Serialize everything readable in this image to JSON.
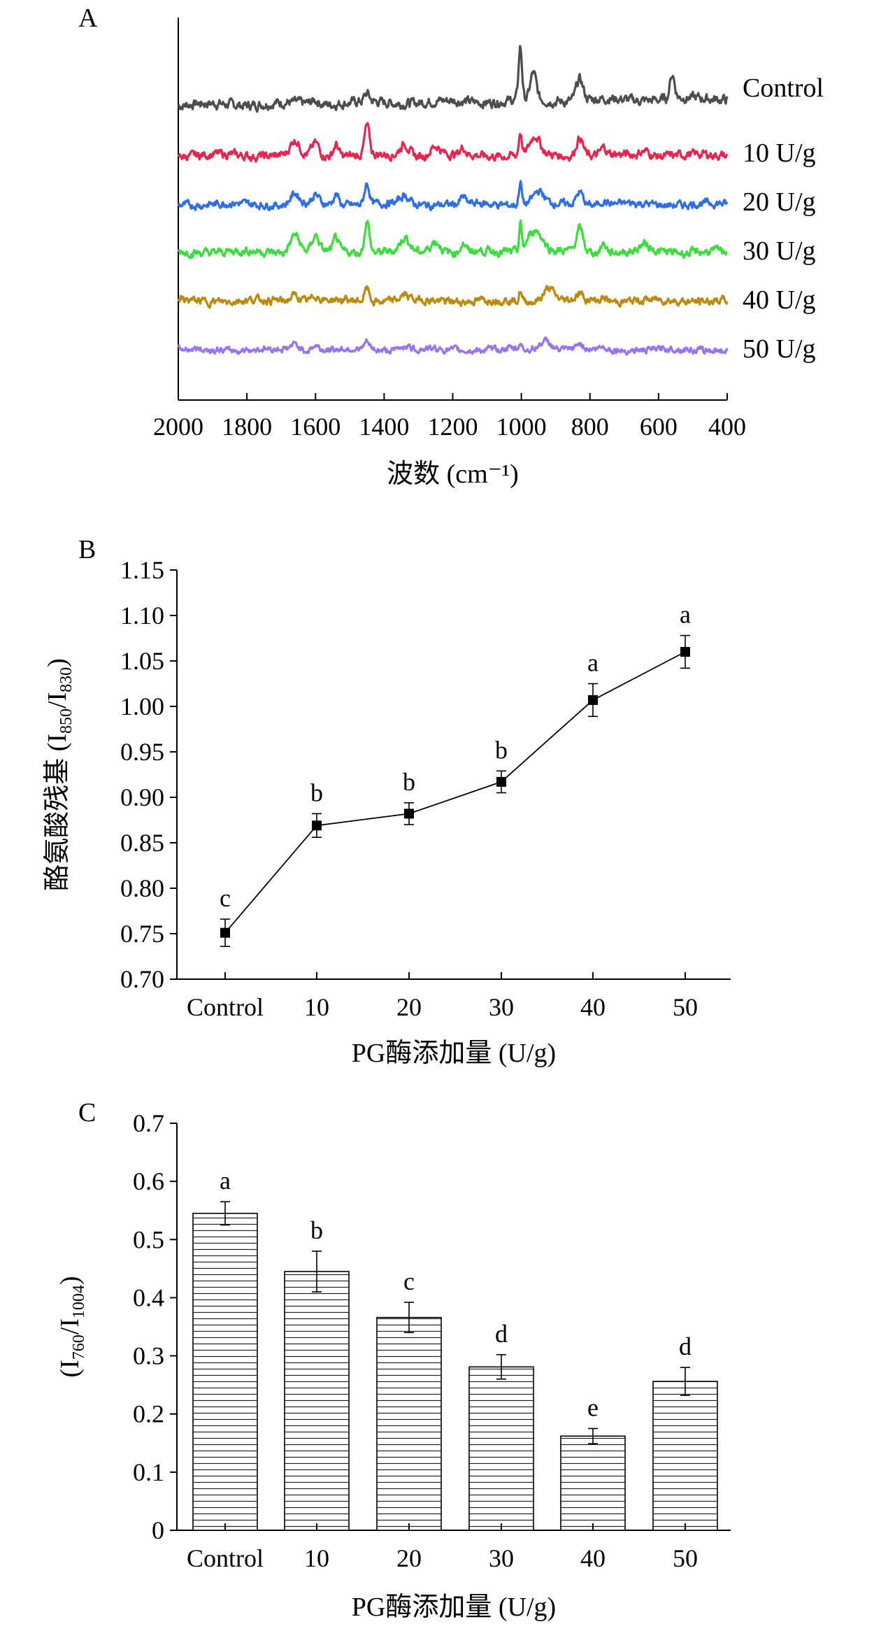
{
  "chart_data": [
    {
      "panel": "A",
      "type": "line",
      "xlabel": "波数 (cm⁻¹)",
      "xlim": [
        2000,
        400
      ],
      "xticks": [
        2000,
        1800,
        1600,
        1400,
        1200,
        1000,
        800,
        600,
        400
      ],
      "xtick_labels": [
        "2000",
        "1800",
        "1600",
        "1400",
        "1200",
        "1000",
        "800",
        "600",
        "400"
      ],
      "series": [
        {
          "name": "Control",
          "color": "#4d4d4d",
          "baseline": 0.0,
          "peaks": [
            [
              1003,
              2.0,
              7
            ],
            [
              965,
              1.0,
              12
            ],
            [
              830,
              0.8,
              14
            ],
            [
              560,
              0.9,
              10
            ],
            [
              1450,
              0.3,
              10
            ],
            [
              1600,
              0.15,
              14
            ]
          ]
        },
        {
          "name": "10 U/g",
          "color": "#e8254f",
          "baseline": 0.0,
          "peaks": [
            [
              1660,
              0.6,
              18
            ],
            [
              1600,
              0.5,
              14
            ],
            [
              1540,
              0.5,
              10
            ],
            [
              1450,
              1.2,
              10
            ],
            [
              1340,
              0.5,
              18
            ],
            [
              1250,
              0.4,
              20
            ],
            [
              1170,
              0.3,
              10
            ],
            [
              1003,
              1.0,
              6
            ],
            [
              960,
              0.8,
              20
            ],
            [
              830,
              0.8,
              14
            ],
            [
              760,
              0.3,
              12
            ],
            [
              640,
              0.2,
              20
            ]
          ]
        },
        {
          "name": "20 U/g",
          "color": "#2e6fe8",
          "baseline": 0.0,
          "peaks": [
            [
              1660,
              0.5,
              18
            ],
            [
              1600,
              0.4,
              14
            ],
            [
              1540,
              0.5,
              10
            ],
            [
              1450,
              1.0,
              10
            ],
            [
              1340,
              0.4,
              18
            ],
            [
              1170,
              0.3,
              10
            ],
            [
              1003,
              1.1,
              6
            ],
            [
              950,
              0.6,
              22
            ],
            [
              830,
              0.6,
              14
            ],
            [
              760,
              0.2,
              12
            ]
          ]
        },
        {
          "name": "30 U/g",
          "color": "#3ddc3d",
          "baseline": 0.0,
          "peaks": [
            [
              1660,
              0.8,
              18
            ],
            [
              1600,
              0.7,
              14
            ],
            [
              1540,
              0.6,
              10
            ],
            [
              1450,
              1.4,
              10
            ],
            [
              1340,
              0.6,
              18
            ],
            [
              1250,
              0.5,
              20
            ],
            [
              1170,
              0.4,
              10
            ],
            [
              1003,
              1.2,
              5
            ],
            [
              960,
              1.0,
              30
            ],
            [
              830,
              1.0,
              14
            ],
            [
              760,
              0.4,
              12
            ],
            [
              640,
              0.3,
              20
            ]
          ]
        },
        {
          "name": "40 U/g",
          "color": "#bd8a0d",
          "baseline": 0.0,
          "peaks": [
            [
              1660,
              0.3,
              18
            ],
            [
              1600,
              0.25,
              14
            ],
            [
              1450,
              0.6,
              10
            ],
            [
              1340,
              0.25,
              18
            ],
            [
              1003,
              0.5,
              5
            ],
            [
              920,
              0.6,
              22
            ],
            [
              830,
              0.3,
              14
            ],
            [
              760,
              0.15,
              12
            ]
          ]
        },
        {
          "name": "50 U/g",
          "color": "#9a73f0",
          "baseline": 0.0,
          "peaks": [
            [
              1660,
              0.3,
              18
            ],
            [
              1600,
              0.25,
              14
            ],
            [
              1450,
              0.4,
              10
            ],
            [
              1340,
              0.25,
              18
            ],
            [
              1003,
              0.35,
              5
            ],
            [
              930,
              0.5,
              25
            ],
            [
              830,
              0.3,
              14
            ],
            [
              760,
              0.15,
              12
            ]
          ]
        }
      ]
    },
    {
      "panel": "B",
      "type": "line",
      "ylabel": "酪氨酸残基 (I850/I830)",
      "ylabel_main": "酪氨酸残基 (I",
      "ylabel_sub1": "850",
      "ylabel_mid": "/I",
      "ylabel_sub2": "830",
      "ylabel_end": ")",
      "xlabel": "PG酶添加量 (U/g)",
      "categories": [
        "Control",
        "10",
        "20",
        "30",
        "40",
        "50"
      ],
      "values": [
        0.751,
        0.869,
        0.882,
        0.917,
        1.007,
        1.06
      ],
      "errors": [
        0.015,
        0.013,
        0.012,
        0.012,
        0.018,
        0.018
      ],
      "letters": [
        "c",
        "b",
        "b",
        "b",
        "a",
        "a"
      ],
      "ylim": [
        0.7,
        1.15
      ],
      "yticks": [
        0.7,
        0.75,
        0.8,
        0.85,
        0.9,
        0.95,
        1.0,
        1.05,
        1.1,
        1.15
      ],
      "ytick_labels": [
        "0.70",
        "0.75",
        "0.80",
        "0.85",
        "0.90",
        "0.95",
        "1.00",
        "1.05",
        "1.10",
        "1.15"
      ]
    },
    {
      "panel": "C",
      "type": "bar",
      "ylabel": "(I760/I1004)",
      "ylabel_main": "(I",
      "ylabel_sub1": "760",
      "ylabel_mid": "/I",
      "ylabel_sub2": "1004",
      "ylabel_end": ")",
      "xlabel": "PG酶添加量 (U/g)",
      "categories": [
        "Control",
        "10",
        "20",
        "30",
        "40",
        "50"
      ],
      "values": [
        0.545,
        0.445,
        0.366,
        0.281,
        0.162,
        0.256
      ],
      "errors": [
        0.02,
        0.035,
        0.026,
        0.021,
        0.013,
        0.024
      ],
      "letters": [
        "a",
        "b",
        "c",
        "d",
        "e",
        "d"
      ],
      "ylim": [
        0,
        0.7
      ],
      "yticks": [
        0,
        0.1,
        0.2,
        0.3,
        0.4,
        0.5,
        0.6,
        0.7
      ],
      "ytick_labels": [
        "0",
        "0.1",
        "0.2",
        "0.3",
        "0.4",
        "0.5",
        "0.6",
        "0.7"
      ]
    }
  ]
}
